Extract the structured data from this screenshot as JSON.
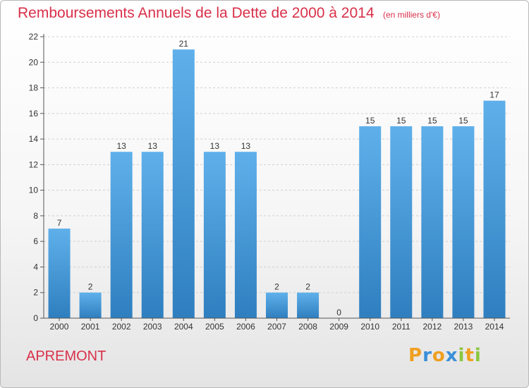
{
  "colors": {
    "title": "#d9304a",
    "bar_light": "#5fb0ea",
    "bar_dark": "#2f7fc0",
    "axis": "#555555",
    "grid": "#d0d0d0"
  },
  "commune": "APREMONT",
  "brand": {
    "text": "Proxiti",
    "letters": [
      "P",
      "r",
      "o",
      "x",
      "i",
      "t",
      "i"
    ],
    "letter_colors": [
      "#f0a020",
      "#3a8fd8",
      "#f0a020",
      "#3a8fd8",
      "#8cc63f",
      "#f0a020",
      "#8cc63f"
    ]
  },
  "chart_data": {
    "type": "bar",
    "title": "Remboursements Annuels de la Dette de 2000 à 2014",
    "subtitle": "(en milliers d'€)",
    "categories": [
      "2000",
      "2001",
      "2002",
      "2003",
      "2004",
      "2005",
      "2006",
      "2007",
      "2008",
      "2009",
      "2010",
      "2011",
      "2012",
      "2013",
      "2014"
    ],
    "values": [
      7,
      2,
      13,
      13,
      21,
      13,
      13,
      2,
      2,
      0,
      15,
      15,
      15,
      15,
      17
    ],
    "data_labels": [
      "7",
      "2",
      "13",
      "13",
      "21",
      "13",
      "13",
      "2",
      "2",
      "0",
      "15",
      "15",
      "15",
      "15",
      "17"
    ],
    "ylim": [
      0,
      22
    ],
    "yticks": [
      0,
      2,
      4,
      6,
      8,
      10,
      12,
      14,
      16,
      18,
      20,
      22
    ],
    "ytick_labels": [
      "0",
      "2",
      "4",
      "6",
      "8",
      "10",
      "12",
      "14",
      "16",
      "18",
      "20",
      "22"
    ],
    "grid": true,
    "legend": "none"
  }
}
